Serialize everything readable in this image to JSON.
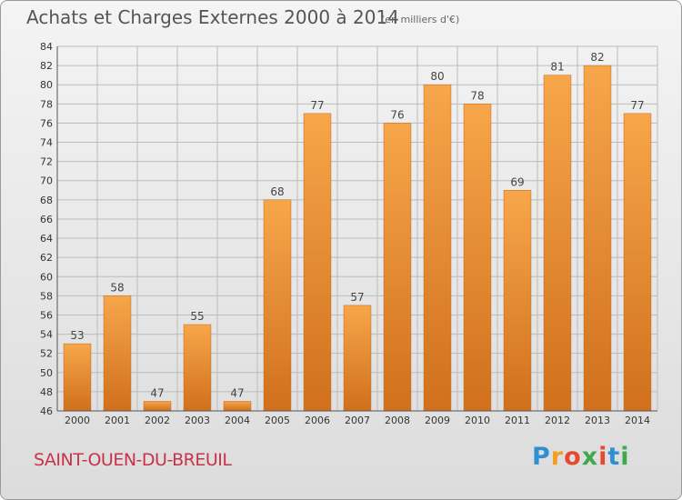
{
  "title": "Achats et Charges Externes 2000 à 2014",
  "unit": "(en milliers d'€)",
  "commune": "SAINT-OUEN-DU-BREUIL",
  "brand": {
    "letters": [
      "P",
      "r",
      "o",
      "x",
      "i",
      "t",
      "i"
    ],
    "colors": [
      "#2f8fd0",
      "#f0a020",
      "#e64a2e",
      "#3fa94e",
      "#e64a2e",
      "#2f8fd0",
      "#3fa94e"
    ]
  },
  "colors": {
    "bar_light": "#f7a64a",
    "bar_dark": "#d0701c",
    "grid": "#bcbcbc",
    "axis_text": "#333333"
  },
  "chart_data": {
    "type": "bar",
    "title": "Achats et Charges Externes 2000 à 2014",
    "xlabel": "",
    "ylabel": "",
    "categories": [
      "2000",
      "2001",
      "2002",
      "2003",
      "2004",
      "2005",
      "2006",
      "2007",
      "2008",
      "2009",
      "2010",
      "2011",
      "2012",
      "2013",
      "2014"
    ],
    "values": [
      53,
      58,
      47,
      55,
      47,
      68,
      77,
      57,
      76,
      80,
      78,
      69,
      81,
      82,
      77
    ],
    "ylim": [
      46,
      84
    ],
    "yticks": [
      46,
      48,
      50,
      52,
      54,
      56,
      58,
      60,
      62,
      64,
      66,
      68,
      70,
      72,
      74,
      76,
      78,
      80,
      82,
      84
    ],
    "grid": true
  }
}
